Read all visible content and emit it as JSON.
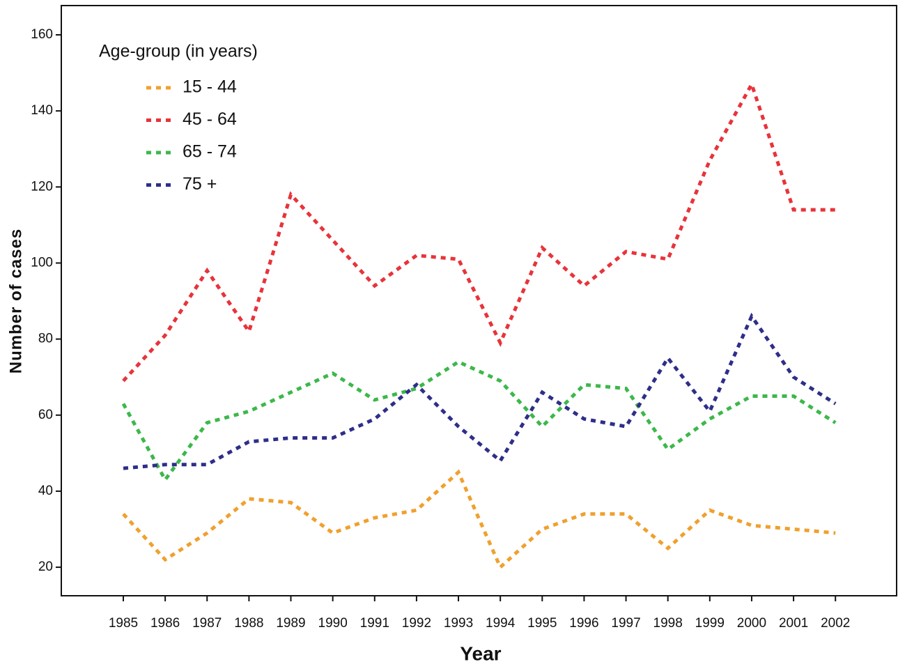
{
  "chart_data": {
    "type": "line",
    "x_label": "Year",
    "y_label": "Number of cases",
    "legend_title": "Age-group (in years)",
    "legend_position": "upper left",
    "x": [
      1985,
      1986,
      1987,
      1988,
      1989,
      1990,
      1991,
      1992,
      1993,
      1994,
      1995,
      1996,
      1997,
      1998,
      1999,
      2000,
      2001,
      2002
    ],
    "xlim": [
      1983.52,
      2003.46
    ],
    "xticks": [
      1985,
      1986,
      1987,
      1988,
      1989,
      1990,
      1991,
      1992,
      1993,
      1994,
      1995,
      1996,
      1997,
      1998,
      1999,
      2000,
      2001,
      2002
    ],
    "ylim": [
      12.5,
      167.7
    ],
    "yticks": [
      20,
      40,
      60,
      80,
      100,
      120,
      140,
      160
    ],
    "series": [
      {
        "name": "15 - 44",
        "color": "#f0a02e",
        "values": [
          34,
          22,
          29,
          38,
          37,
          29,
          33,
          35,
          45,
          20,
          30,
          34,
          34,
          25,
          35,
          31,
          30,
          29
        ]
      },
      {
        "name": "45 - 64",
        "color": "#e8333a",
        "values": [
          69,
          81,
          98,
          82,
          118,
          106,
          94,
          102,
          101,
          79,
          104,
          94,
          103,
          101,
          127,
          147,
          114,
          114
        ]
      },
      {
        "name": "65 - 74",
        "color": "#3cb84a",
        "values": [
          63,
          43,
          58,
          61,
          66,
          71,
          64,
          67,
          74,
          69,
          57,
          68,
          67,
          51,
          59,
          65,
          65,
          58
        ]
      },
      {
        "name": "75 +",
        "color": "#2e2e8a",
        "values": [
          46,
          47,
          47,
          53,
          54,
          54,
          59,
          68,
          57,
          48,
          66,
          59,
          57,
          75,
          61,
          86,
          70,
          63
        ]
      }
    ]
  }
}
